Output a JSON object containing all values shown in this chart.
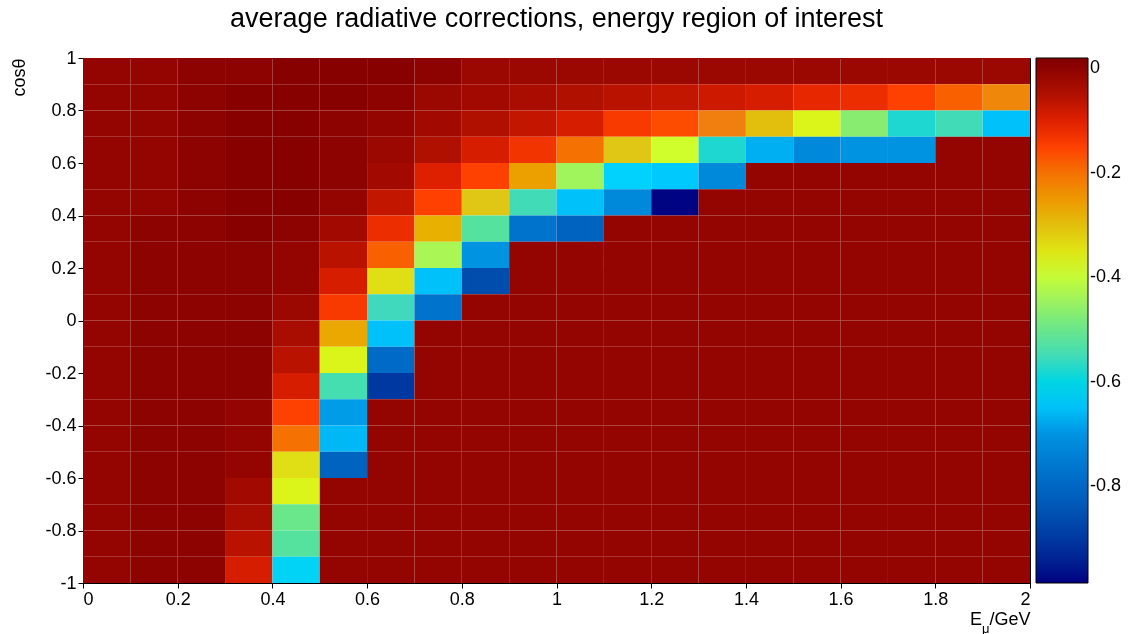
{
  "chart_data": {
    "type": "heatmap",
    "title": "average radiative corrections, energy region of interest",
    "xlabel": "E$_{μ}$/GeV",
    "ylabel": "cosθ",
    "x": [
      0.05,
      0.15,
      0.25,
      0.35,
      0.45,
      0.55,
      0.65,
      0.75,
      0.85,
      0.95,
      1.05,
      1.15,
      1.25,
      1.35,
      1.45,
      1.55,
      1.65,
      1.75,
      1.85,
      1.95
    ],
    "xlim": [
      0,
      2
    ],
    "ylim": [
      -1,
      1
    ],
    "xticks": [
      0,
      0.2,
      0.4,
      0.6,
      0.8,
      1,
      1.2,
      1.4,
      1.6,
      1.8,
      2
    ],
    "yticks": [
      -1,
      -0.8,
      -0.6,
      -0.4,
      -0.2,
      0,
      0.2,
      0.4,
      0.6,
      0.8,
      1
    ],
    "clim": [
      -0.985,
      0.02
    ],
    "cticks": [
      0,
      -0.2,
      -0.4,
      -0.6,
      -0.8
    ],
    "cells": [
      [
        -0.01,
        -0.01,
        0,
        0,
        0.01,
        0.01,
        0.01,
        0,
        -0.02,
        -0.02,
        -0.02,
        -0.02,
        -0.02,
        -0.02,
        -0.02,
        -0.02,
        -0.02,
        -0.02,
        -0.02,
        -0.02
      ],
      [
        -0.01,
        -0.01,
        0,
        0.01,
        0.01,
        0.01,
        0,
        -0.02,
        -0.03,
        -0.04,
        -0.05,
        -0.06,
        -0.07,
        -0.08,
        -0.09,
        -0.11,
        -0.12,
        -0.15,
        -0.18,
        -0.23
      ],
      [
        -0.01,
        -0.01,
        0,
        0.01,
        0.01,
        0,
        -0.01,
        -0.03,
        -0.05,
        -0.07,
        -0.09,
        -0.14,
        -0.16,
        -0.22,
        -0.3,
        -0.37,
        -0.47,
        -0.58,
        -0.55,
        -0.65
      ],
      [
        -0.01,
        -0.01,
        0,
        0.01,
        0.01,
        0,
        -0.02,
        -0.05,
        -0.09,
        -0.13,
        -0.2,
        -0.31,
        -0.39,
        -0.58,
        -0.67,
        -0.72,
        -0.7,
        -0.7,
        -0.01,
        -0.01
      ],
      [
        -0.01,
        -0.01,
        0,
        0.01,
        0.01,
        0,
        -0.03,
        -0.1,
        -0.15,
        -0.26,
        -0.44,
        -0.63,
        -0.64,
        -0.72,
        -0.01,
        -0.01,
        -0.01,
        -0.01,
        -0.01,
        -0.01
      ],
      [
        -0.01,
        -0.01,
        0,
        0.01,
        0.01,
        -0.01,
        -0.07,
        -0.15,
        -0.31,
        -0.55,
        -0.65,
        -0.72,
        -0.98,
        -0.01,
        -0.01,
        -0.01,
        -0.01,
        -0.01,
        -0.01,
        -0.01
      ],
      [
        -0.01,
        0,
        0,
        0.01,
        0,
        -0.03,
        -0.12,
        -0.28,
        -0.52,
        -0.77,
        -0.81,
        -0.01,
        -0.01,
        -0.01,
        -0.01,
        -0.01,
        -0.01,
        -0.01,
        -0.01,
        -0.01
      ],
      [
        -0.01,
        0,
        0,
        0,
        -0.01,
        -0.06,
        -0.18,
        -0.43,
        -0.7,
        -0.01,
        -0.01,
        -0.01,
        -0.01,
        -0.01,
        -0.01,
        -0.01,
        -0.01,
        -0.01,
        -0.01,
        -0.01
      ],
      [
        -0.01,
        0,
        0,
        0,
        -0.01,
        -0.09,
        -0.34,
        -0.65,
        -0.86,
        -0.01,
        -0.01,
        -0.01,
        -0.01,
        -0.01,
        -0.01,
        -0.01,
        -0.01,
        -0.01,
        -0.01,
        -0.01
      ],
      [
        -0.01,
        0,
        0,
        0,
        -0.02,
        -0.14,
        -0.56,
        -0.77,
        -0.01,
        -0.01,
        -0.01,
        -0.01,
        -0.01,
        -0.01,
        -0.01,
        -0.01,
        -0.01,
        -0.01,
        -0.01,
        -0.01
      ],
      [
        -0.01,
        0,
        0,
        0,
        -0.04,
        -0.27,
        -0.65,
        -0.01,
        -0.01,
        -0.01,
        -0.01,
        -0.01,
        -0.01,
        -0.01,
        -0.01,
        -0.01,
        -0.01,
        -0.01,
        -0.01,
        -0.01
      ],
      [
        -0.01,
        0,
        0,
        0,
        -0.06,
        -0.37,
        -0.79,
        -0.01,
        -0.01,
        -0.01,
        -0.01,
        -0.01,
        -0.01,
        -0.01,
        -0.01,
        -0.01,
        -0.01,
        -0.01,
        -0.01,
        -0.01
      ],
      [
        -0.01,
        0,
        0,
        0,
        -0.09,
        -0.54,
        -0.9,
        -0.01,
        -0.01,
        -0.01,
        -0.01,
        -0.01,
        -0.01,
        -0.01,
        -0.01,
        -0.01,
        -0.01,
        -0.01,
        -0.01,
        -0.01
      ],
      [
        -0.01,
        0,
        0,
        -0.01,
        -0.15,
        -0.69,
        -0.01,
        -0.01,
        -0.01,
        -0.01,
        -0.01,
        -0.01,
        -0.01,
        -0.01,
        -0.01,
        -0.01,
        -0.01,
        -0.01,
        -0.01,
        -0.01
      ],
      [
        -0.01,
        0,
        0,
        -0.01,
        -0.2,
        -0.66,
        -0.01,
        -0.01,
        -0.01,
        -0.01,
        -0.01,
        -0.01,
        -0.01,
        -0.01,
        -0.01,
        -0.01,
        -0.01,
        -0.01,
        -0.01,
        -0.01
      ],
      [
        -0.01,
        0,
        0,
        -0.01,
        -0.34,
        -0.81,
        -0.01,
        -0.01,
        -0.01,
        -0.01,
        -0.01,
        -0.01,
        -0.01,
        -0.01,
        -0.01,
        -0.01,
        -0.01,
        -0.01,
        -0.01,
        -0.01
      ],
      [
        -0.01,
        0,
        0,
        -0.03,
        -0.37,
        -0.01,
        -0.01,
        -0.01,
        -0.01,
        -0.01,
        -0.01,
        -0.01,
        -0.01,
        -0.01,
        -0.01,
        -0.01,
        -0.01,
        -0.01,
        -0.01,
        -0.01
      ],
      [
        -0.01,
        0,
        0,
        -0.04,
        -0.5,
        -0.01,
        -0.01,
        -0.01,
        -0.01,
        -0.01,
        -0.01,
        -0.01,
        -0.01,
        -0.01,
        -0.01,
        -0.01,
        -0.01,
        -0.01,
        -0.01,
        -0.01
      ],
      [
        -0.01,
        0,
        0,
        -0.06,
        -0.52,
        -0.01,
        -0.01,
        -0.01,
        -0.01,
        -0.01,
        -0.01,
        -0.01,
        -0.01,
        -0.01,
        -0.01,
        -0.01,
        -0.01,
        -0.01,
        -0.01,
        -0.01
      ],
      [
        -0.01,
        0,
        0,
        -0.09,
        -0.62,
        -0.01,
        -0.01,
        -0.01,
        -0.01,
        -0.01,
        -0.01,
        -0.01,
        -0.01,
        -0.01,
        -0.01,
        -0.01,
        -0.01,
        -0.01,
        -0.01,
        -0.01
      ]
    ]
  }
}
